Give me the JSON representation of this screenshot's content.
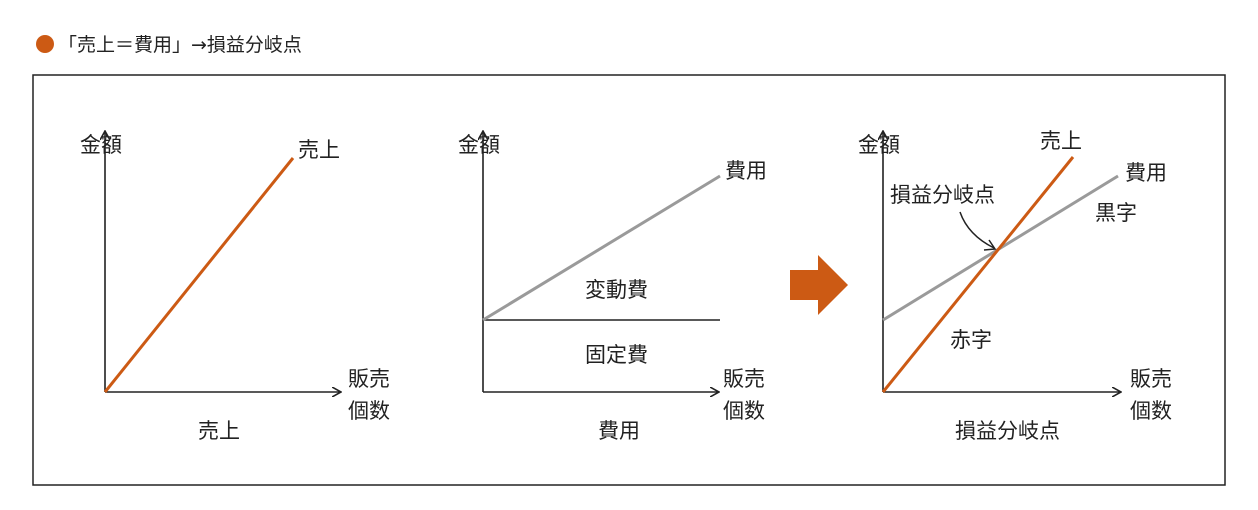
{
  "title": {
    "text": "「売上＝費用」→損益分岐点",
    "bullet_color": "#cc5a14"
  },
  "colors": {
    "sales": "#cc5a14",
    "cost": "#9a9a9a",
    "axis": "#222222",
    "arrow": "#cc5a14"
  },
  "panel_sales": {
    "y_label": "金額",
    "x_label_1": "販売",
    "x_label_2": "個数",
    "line_label": "売上",
    "caption": "売上"
  },
  "panel_cost": {
    "y_label": "金額",
    "x_label_1": "販売",
    "x_label_2": "個数",
    "line_label": "費用",
    "variable_label": "変動費",
    "fixed_label": "固定費",
    "caption": "費用"
  },
  "panel_bep": {
    "y_label": "金額",
    "x_label_1": "販売",
    "x_label_2": "個数",
    "sales_label": "売上",
    "cost_label": "費用",
    "bep_label": "損益分岐点",
    "profit_label": "黒字",
    "loss_label": "赤字",
    "caption": "損益分岐点"
  },
  "transition_icon": "right-arrow-icon"
}
